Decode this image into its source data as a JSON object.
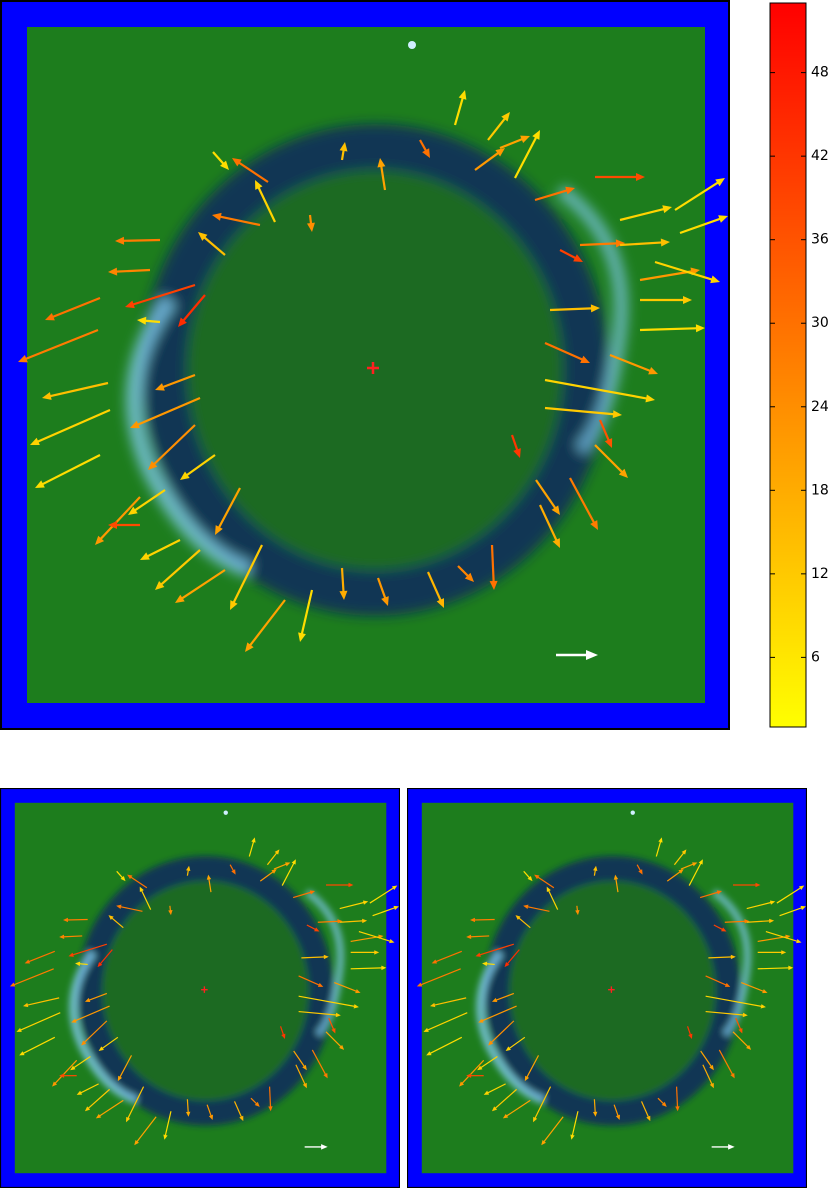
{
  "chart_data": {
    "type": "quiver",
    "xlim": [
      0,
      730
    ],
    "ylim": [
      730,
      0
    ],
    "x": [
      268,
      213,
      275,
      160,
      150,
      100,
      98,
      108,
      110,
      100,
      140,
      140,
      180,
      200,
      225,
      262,
      285,
      312,
      342,
      378,
      428,
      458,
      492,
      540,
      570,
      536,
      595,
      600,
      512,
      545,
      545,
      545,
      610,
      550,
      640,
      640,
      560,
      580,
      620,
      640,
      655,
      595,
      620,
      675,
      680,
      535,
      500,
      515,
      455,
      488,
      475,
      420,
      385,
      342,
      260,
      225,
      205,
      195,
      160,
      195,
      200,
      195,
      240,
      215,
      165,
      310
    ],
    "y": [
      182,
      152,
      222,
      240,
      270,
      298,
      330,
      383,
      410,
      455,
      497,
      525,
      540,
      550,
      570,
      545,
      600,
      590,
      568,
      578,
      572,
      566,
      545,
      505,
      478,
      480,
      445,
      420,
      435,
      408,
      380,
      343,
      355,
      310,
      330,
      300,
      250,
      245,
      245,
      280,
      262,
      177,
      220,
      210,
      233,
      200,
      148,
      178,
      125,
      140,
      170,
      140,
      190,
      160,
      225,
      255,
      295,
      285,
      322,
      375,
      398,
      425,
      488,
      455,
      490,
      215
    ],
    "u": [
      -36,
      16,
      -20,
      -45,
      -42,
      -55,
      -80,
      -66,
      -80,
      -65,
      -45,
      -32,
      -40,
      -45,
      -50,
      -32,
      -40,
      -12,
      2,
      10,
      16,
      16,
      2,
      20,
      28,
      24,
      33,
      12,
      8,
      77,
      110,
      45,
      48,
      50,
      65,
      52,
      23,
      45,
      50,
      60,
      65,
      50,
      52,
      50,
      48,
      40,
      30,
      25,
      10,
      22,
      30,
      10,
      -5,
      3,
      -48,
      -27,
      -27,
      -70,
      -23,
      -40,
      -70,
      -47,
      -25,
      -35,
      -37,
      2
    ],
    "v": [
      -24,
      18,
      -42,
      1,
      2,
      22,
      32,
      15,
      35,
      33,
      48,
      0,
      20,
      40,
      33,
      65,
      52,
      52,
      32,
      28,
      36,
      16,
      45,
      43,
      52,
      35,
      33,
      28,
      23,
      7,
      20,
      20,
      19,
      -2,
      -2,
      0,
      12,
      -2,
      -3,
      -10,
      20,
      0,
      -13,
      -32,
      -17,
      -12,
      -12,
      -48,
      -35,
      -28,
      -22,
      18,
      -32,
      -18,
      -10,
      -23,
      32,
      22,
      -2,
      15,
      30,
      45,
      47,
      25,
      25,
      17
    ],
    "speed": [
      30,
      8,
      10,
      28,
      26,
      30,
      28,
      14,
      10,
      8,
      22,
      38,
      10,
      12,
      20,
      12,
      20,
      8,
      18,
      22,
      16,
      26,
      30,
      18,
      28,
      20,
      20,
      36,
      42,
      12,
      10,
      30,
      22,
      14,
      8,
      12,
      40,
      28,
      14,
      22,
      10,
      38,
      10,
      8,
      8,
      30,
      20,
      8,
      8,
      12,
      22,
      30,
      20,
      14,
      28,
      14,
      44,
      40,
      8,
      22,
      22,
      24,
      20,
      10,
      10,
      24
    ],
    "clim": [
      1,
      53
    ],
    "cticks": [
      6,
      12,
      18,
      24,
      30,
      36,
      42,
      48
    ],
    "colormap": [
      "#ffff00",
      "#ff0000"
    ]
  }
}
